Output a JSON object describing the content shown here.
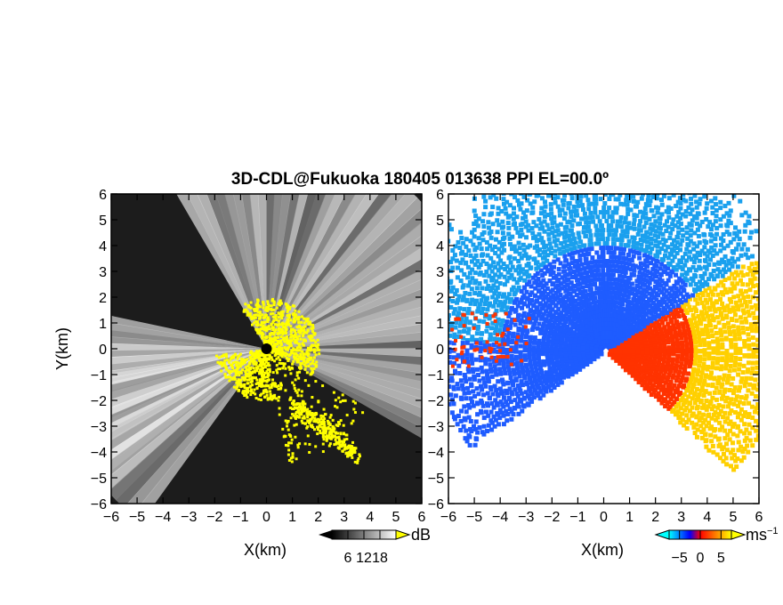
{
  "chart_data": {
    "title": "3D-CDL@Fukuoka 180405 013638 PPI EL=00.0º",
    "panels": [
      {
        "type": "heatmap",
        "quantity": "SNR",
        "xlabel": "X(km)",
        "ylabel": "Y(km)",
        "xlim": [
          -6,
          6
        ],
        "ylim": [
          -6,
          6
        ],
        "x_ticks": [
          "−6",
          "−5",
          "−4",
          "−3",
          "−2",
          "−1",
          "0",
          "1",
          "2",
          "3",
          "4",
          "5",
          "6"
        ],
        "y_ticks": [
          "6",
          "5",
          "4",
          "3",
          "2",
          "1",
          "0",
          "−1",
          "−2",
          "−3",
          "−4",
          "−5",
          "−6"
        ],
        "colorbar": {
          "unit": "dB",
          "ticks": [
            "6",
            "12",
            "18"
          ],
          "tick_values": [
            6,
            12,
            18
          ],
          "range": [
            0,
            24
          ],
          "colors": [
            "#000000",
            "#ffffff"
          ],
          "extend_color": "#ffff00"
        }
      },
      {
        "type": "heatmap",
        "quantity": "Doppler velocity",
        "xlabel": "X(km)",
        "xlim": [
          -6,
          6
        ],
        "ylim": [
          -6,
          6
        ],
        "x_ticks": [
          "−6",
          "−5",
          "−4",
          "−3",
          "−2",
          "−1",
          "0",
          "1",
          "2",
          "3",
          "4",
          "5",
          "6"
        ],
        "y_ticks": [
          "6",
          "5",
          "4",
          "3",
          "2",
          "1",
          "0",
          "−1",
          "−2",
          "−3",
          "−4",
          "−5",
          "−6"
        ],
        "colorbar": {
          "unit": "ms",
          "unit_exponent": "−1",
          "ticks": [
            "−5",
            "0",
            "5"
          ],
          "tick_values": [
            -5,
            0,
            5
          ],
          "range": [
            -7.5,
            7.5
          ],
          "colors": [
            "#00ffff",
            "#0000ff",
            "#ff0000",
            "#ffff00"
          ]
        }
      }
    ]
  },
  "colors": {
    "snr_strong": "#ffff00",
    "approaching": "#1f5cff",
    "approaching_far": "#1aa0ee",
    "receding": "#ff3300",
    "receding_far": "#ffd000"
  }
}
